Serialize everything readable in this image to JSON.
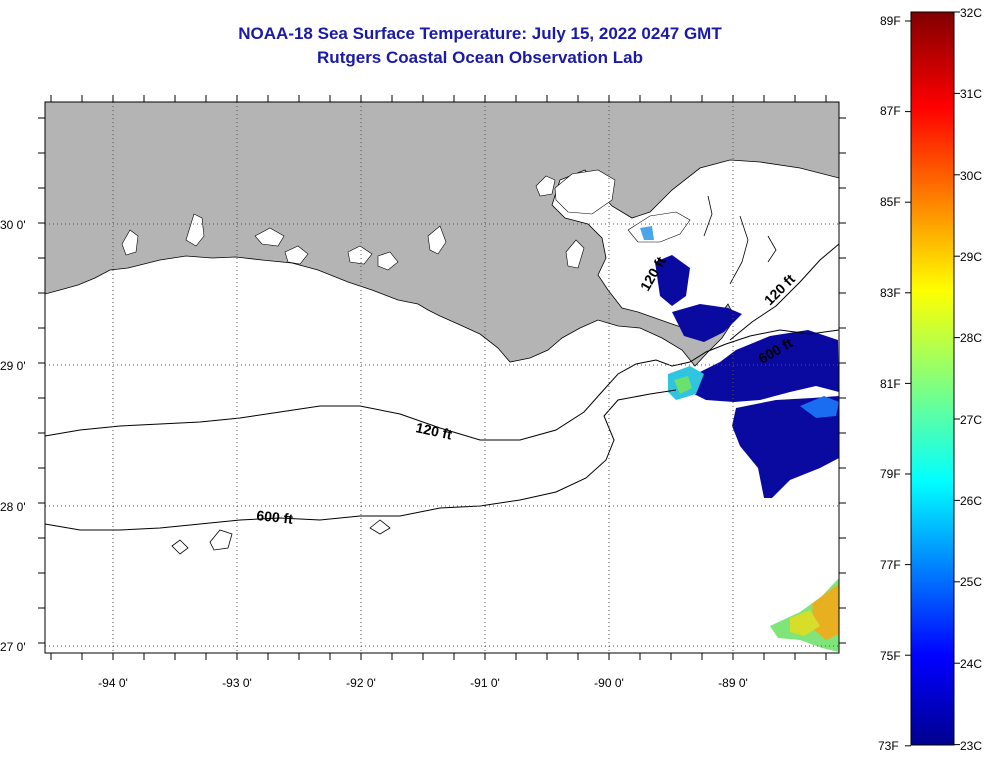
{
  "header": {
    "title": "NOAA-18 Sea Surface Temperature:  July 15, 2022 0247 GMT",
    "subtitle": "Rutgers Coastal Ocean Observation Lab"
  },
  "map": {
    "lat_labels": [
      "30 0'",
      "29 0'",
      "28 0'",
      "27 0'"
    ],
    "lon_labels": [
      "-94 0'",
      "-93 0'",
      "-92 0'",
      "-91 0'",
      "-90 0'",
      "-89 0'"
    ],
    "contours": [
      {
        "label": "120 ft"
      },
      {
        "label": "600 ft"
      },
      {
        "label": "120 ft"
      },
      {
        "label": "600 ft"
      },
      {
        "label": "120 ft"
      }
    ],
    "colors": {
      "land": "#b4b4b4",
      "water": "#ffffff",
      "grid": "#555555"
    }
  },
  "colorbar": {
    "fahrenheit_labels": [
      "89F",
      "87F",
      "85F",
      "83F",
      "81F",
      "79F",
      "77F",
      "75F",
      "73F"
    ],
    "celsius_labels": [
      "32C",
      "31C",
      "30C",
      "29C",
      "28C",
      "27C",
      "26C",
      "25C",
      "24C",
      "23C"
    ],
    "min_celsius": 23,
    "max_celsius": 32
  }
}
